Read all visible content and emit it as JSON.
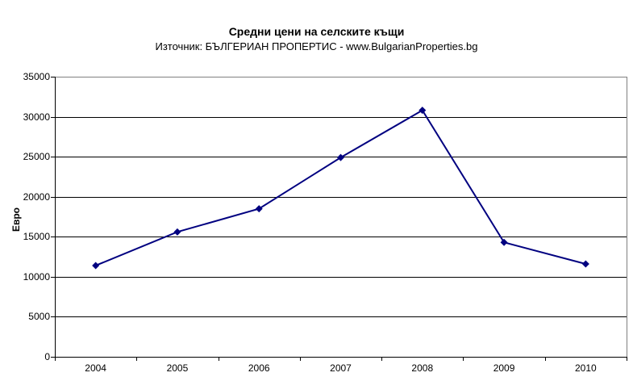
{
  "title": "Средни цени на селските къщи",
  "subtitle": "Източник: БЪЛГЕРИАН ПРОПЕРТИС - www.BulgarianProperties.bg",
  "chart_data": {
    "type": "line",
    "title": "Средни цени на селските къщи",
    "subtitle": "Източник: БЪЛГЕРИАН ПРОПЕРТИС - www.BulgarianProperties.bg",
    "categories": [
      "2004",
      "2005",
      "2006",
      "2007",
      "2008",
      "2009",
      "2010"
    ],
    "series": [
      {
        "name": "Средни цени на селските къщи",
        "values": [
          11400,
          15600,
          18500,
          24900,
          30800,
          14300,
          11600
        ],
        "color": "#000080",
        "marker": "diamond"
      }
    ],
    "xlabel": "",
    "ylabel": "Евро",
    "ylim": [
      0,
      35000
    ],
    "y_ticks": [
      0,
      5000,
      10000,
      15000,
      20000,
      25000,
      30000,
      35000
    ],
    "grid": "horizontal",
    "legend": "none",
    "colors": {
      "background": "#ffffff",
      "line": "#000080",
      "gridline": "#000000",
      "axis": "#000000",
      "frame": "#808080",
      "text": "#000000"
    }
  }
}
